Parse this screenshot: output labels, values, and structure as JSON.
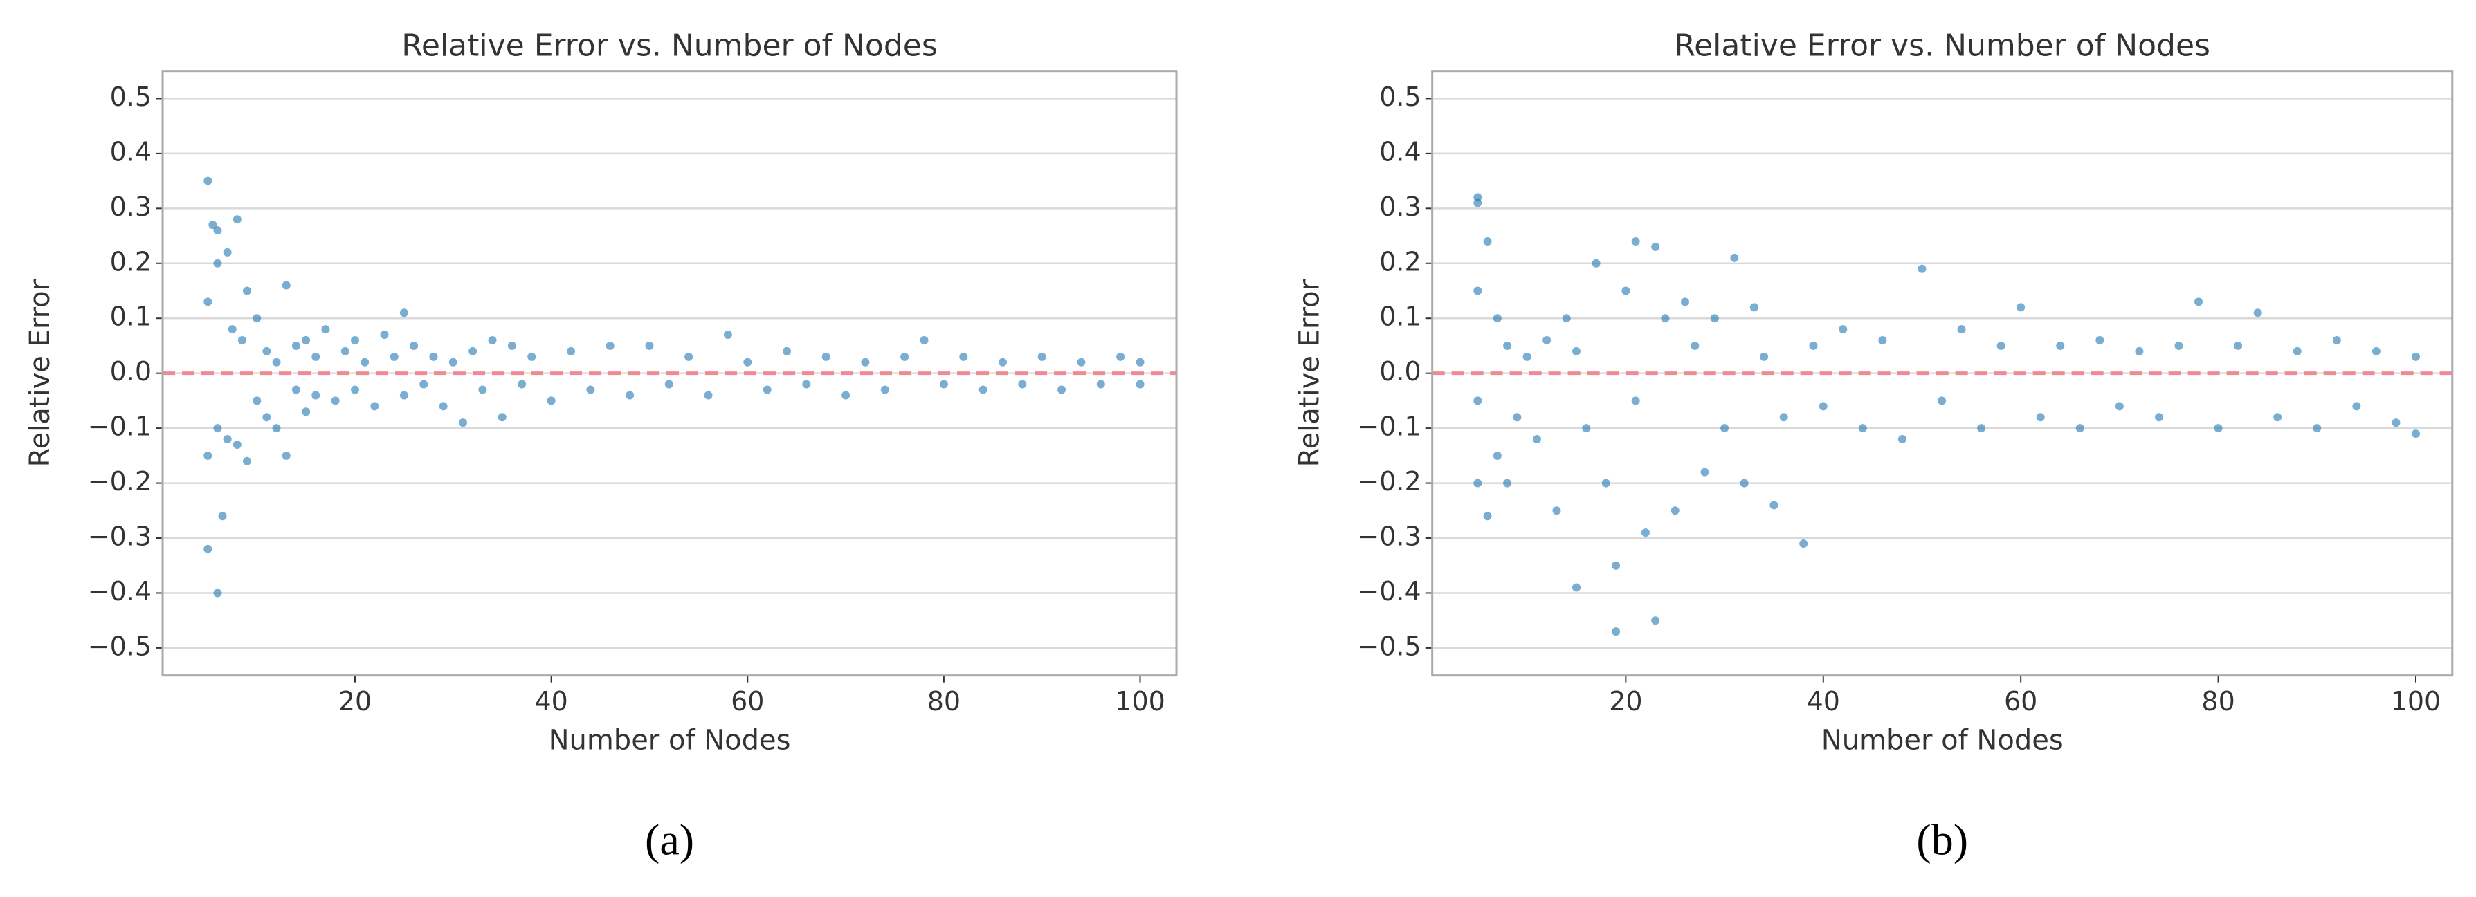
{
  "chart_data": [
    {
      "type": "scatter",
      "title": "Relative Error vs. Number of Nodes",
      "xlabel": "Number of Nodes",
      "ylabel": "Relative Error",
      "caption": "(a)",
      "color": "#1f77b4",
      "grid": true,
      "hline": 0,
      "hline_color": "#f08a94",
      "xlim": [
        0.4,
        103.7
      ],
      "ylim": [
        -0.55,
        0.55
      ],
      "xticks": [
        20,
        40,
        60,
        80,
        100
      ],
      "yticks": [
        {
          "value": -0.5,
          "label": "−0.5"
        },
        {
          "value": -0.4,
          "label": "−0.4"
        },
        {
          "value": -0.3,
          "label": "−0.3"
        },
        {
          "value": -0.2,
          "label": "−0.2"
        },
        {
          "value": -0.1,
          "label": "−0.1"
        },
        {
          "value": 0,
          "label": "0.0"
        },
        0.1,
        0.2,
        0.3,
        0.4,
        0.5
      ],
      "x": [
        5,
        5,
        5,
        5,
        5.5,
        6,
        6,
        6,
        6.5,
        6,
        7,
        7,
        7.5,
        8,
        8,
        8.5,
        9,
        9,
        10,
        10,
        11,
        11,
        12,
        12,
        13,
        13,
        14,
        14,
        15,
        15,
        16,
        16,
        17,
        18,
        19,
        20,
        20,
        21,
        22,
        23,
        24,
        25,
        25,
        26,
        27,
        28,
        29,
        30,
        31,
        32,
        33,
        34,
        35,
        36,
        37,
        38,
        40,
        42,
        44,
        46,
        48,
        50,
        52,
        54,
        56,
        58,
        60,
        62,
        64,
        66,
        68,
        70,
        72,
        74,
        76,
        78,
        80,
        82,
        84,
        86,
        88,
        90,
        92,
        94,
        96,
        98,
        100,
        100
      ],
      "values": [
        0.35,
        0.13,
        -0.15,
        -0.32,
        0.27,
        0.26,
        -0.1,
        -0.4,
        -0.26,
        0.2,
        0.22,
        -0.12,
        0.08,
        0.28,
        -0.13,
        0.06,
        0.15,
        -0.16,
        0.1,
        -0.05,
        0.04,
        -0.08,
        0.02,
        -0.1,
        0.16,
        -0.15,
        0.05,
        -0.03,
        0.06,
        -0.07,
        0.03,
        -0.04,
        0.08,
        -0.05,
        0.04,
        0.06,
        -0.03,
        0.02,
        -0.06,
        0.07,
        0.03,
        0.11,
        -0.04,
        0.05,
        -0.02,
        0.03,
        -0.06,
        0.02,
        -0.09,
        0.04,
        -0.03,
        0.06,
        -0.08,
        0.05,
        -0.02,
        0.03,
        -0.05,
        0.04,
        -0.03,
        0.05,
        -0.04,
        0.05,
        -0.02,
        0.03,
        -0.04,
        0.07,
        0.02,
        -0.03,
        0.04,
        -0.02,
        0.03,
        -0.04,
        0.02,
        -0.03,
        0.03,
        0.06,
        -0.02,
        0.03,
        -0.03,
        0.02,
        -0.02,
        0.03,
        -0.03,
        0.02,
        -0.02,
        0.03,
        0.02,
        -0.02
      ]
    },
    {
      "type": "scatter",
      "title": "Relative Error vs. Number of Nodes",
      "xlabel": "Number of Nodes",
      "ylabel": "Relative Error",
      "caption": "(b)",
      "color": "#1f77b4",
      "grid": true,
      "hline": 0,
      "hline_color": "#f08a94",
      "xlim": [
        0.4,
        103.7
      ],
      "ylim": [
        -0.55,
        0.55
      ],
      "xticks": [
        20,
        40,
        60,
        80,
        100
      ],
      "yticks": [
        {
          "value": -0.5,
          "label": "−0.5"
        },
        {
          "value": -0.4,
          "label": "−0.4"
        },
        {
          "value": -0.3,
          "label": "−0.3"
        },
        {
          "value": -0.2,
          "label": "−0.2"
        },
        {
          "value": -0.1,
          "label": "−0.1"
        },
        {
          "value": 0,
          "label": "0.0"
        },
        0.1,
        0.2,
        0.3,
        0.4,
        0.5
      ],
      "x": [
        5,
        5,
        5,
        5,
        5,
        6,
        6,
        7,
        7,
        8,
        8,
        9,
        10,
        11,
        12,
        13,
        14,
        15,
        15,
        16,
        17,
        18,
        19,
        19,
        20,
        21,
        21,
        22,
        23,
        23,
        24,
        25,
        26,
        27,
        28,
        29,
        30,
        31,
        32,
        33,
        34,
        35,
        36,
        38,
        39,
        40,
        42,
        44,
        46,
        48,
        50,
        52,
        54,
        56,
        58,
        60,
        62,
        64,
        66,
        68,
        70,
        72,
        74,
        76,
        78,
        80,
        82,
        84,
        86,
        88,
        90,
        92,
        94,
        96,
        98,
        100,
        100
      ],
      "values": [
        0.32,
        0.31,
        -0.2,
        0.15,
        -0.05,
        0.24,
        -0.26,
        0.1,
        -0.15,
        0.05,
        -0.2,
        -0.08,
        0.03,
        -0.12,
        0.06,
        -0.25,
        0.1,
        -0.39,
        0.04,
        -0.1,
        0.2,
        -0.2,
        -0.47,
        -0.35,
        0.15,
        0.24,
        -0.05,
        -0.29,
        0.23,
        -0.45,
        0.1,
        -0.25,
        0.13,
        0.05,
        -0.18,
        0.1,
        -0.1,
        0.21,
        -0.2,
        0.12,
        0.03,
        -0.24,
        -0.08,
        -0.31,
        0.05,
        -0.06,
        0.08,
        -0.1,
        0.06,
        -0.12,
        0.19,
        -0.05,
        0.08,
        -0.1,
        0.05,
        0.12,
        -0.08,
        0.05,
        -0.1,
        0.06,
        -0.06,
        0.04,
        -0.08,
        0.05,
        0.13,
        -0.1,
        0.05,
        0.11,
        -0.08,
        0.04,
        -0.1,
        0.06,
        -0.06,
        0.04,
        -0.09,
        0.03,
        -0.11
      ]
    }
  ]
}
